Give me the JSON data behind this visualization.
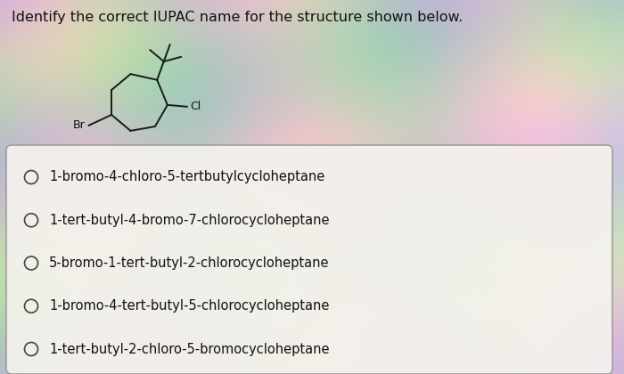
{
  "title": "Identify the correct IUPAC name for the structure shown below.",
  "title_fontsize": 11.5,
  "options": [
    "1-bromo-4-chloro-5-tertbutylcycloheptane",
    "1-tert-butyl-4-bromo-7-chlorocycloheptane",
    "5-bromo-1-tert-butyl-2-chlorocycloheptane",
    "1-bromo-4-tert-butyl-5-chlorocycloheptane",
    "1-tert-butyl-2-chloro-5-bromocycloheptane"
  ],
  "option_fontsize": 10.5,
  "box_bg": "#f5f2ee",
  "box_edge": "#999999",
  "text_color": "#111111",
  "circle_color": "#444444",
  "structure_color": "#1a1a1a",
  "bg_base": "#c8c4b8"
}
